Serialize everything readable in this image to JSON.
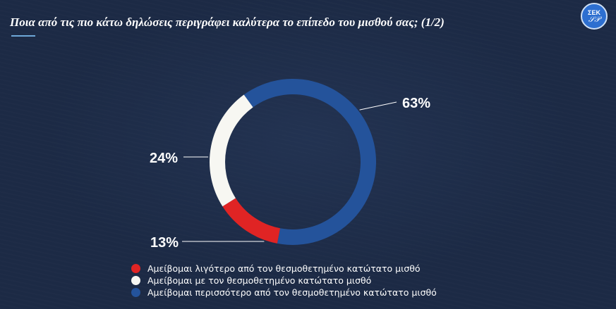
{
  "header": {
    "title": "Ποια από τις πιο κάτω δηλώσεις περιγράφει καλύτερα το επίπεδο του μισθού σας; (1/2)",
    "logo_text": "ΣΕΚ",
    "logo_mark": "𝒮𝒫"
  },
  "colors": {
    "background": "#1c2a45",
    "red": "#e02424",
    "white": "#f7f7f2",
    "blue": "#24539b"
  },
  "chart_data": {
    "type": "pie",
    "variant": "donut",
    "title": "Ποια από τις πιο κάτω δηλώσεις περιγράφει καλύτερα το επίπεδο του μισθού σας; (1/2)",
    "series": [
      {
        "name": "Αμείβομαι λιγότερο από τον θεσμοθετημένο κατώτατο μισθό",
        "value": 13,
        "label": "13%",
        "color": "#e02424"
      },
      {
        "name": "Αμείβομαι με τον θεσμοθετημένο κατώτατο μισθό",
        "value": 24,
        "label": "24%",
        "color": "#f7f7f2"
      },
      {
        "name": "Αμείβομαι περισσότερο από τον θεσμοθετημένο κατώτατο μισθό",
        "value": 63,
        "label": "63%",
        "color": "#24539b"
      }
    ],
    "legend_position": "bottom-left"
  },
  "legend": [
    {
      "label": "Αμείβομαι λιγότερο από τον θεσμοθετημένο κατώτατο μισθό",
      "color": "#e02424"
    },
    {
      "label": "Αμείβομαι με τον θεσμοθετημένο κατώτατο μισθό",
      "color": "#f7f7f2"
    },
    {
      "label": "Αμείβομαι περισσότερο από τον θεσμοθετημένο κατώτατο μισθό",
      "color": "#24539b"
    }
  ]
}
